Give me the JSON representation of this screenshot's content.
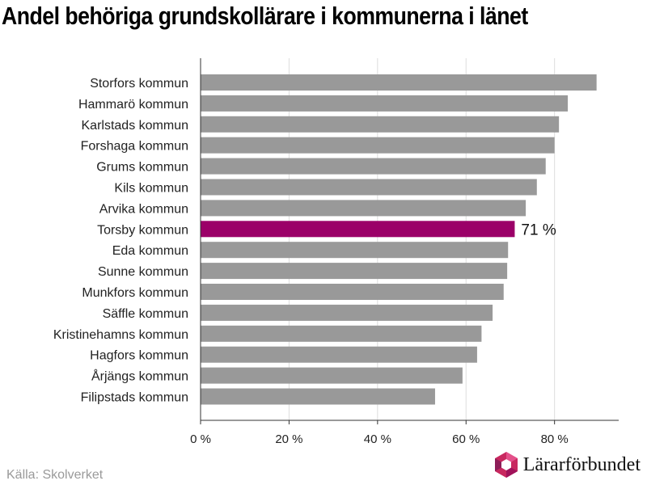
{
  "title": "Andel behöriga grundskollärare i kommunerna i länet",
  "source": "Källa: Skolverket",
  "brand": {
    "name": "Lärarförbundet",
    "logo_icon": "hexagon-logo-icon"
  },
  "colors": {
    "bar": "#999999",
    "highlight": "#9b0068",
    "grid": "#dddddd",
    "axis": "#333333"
  },
  "chart_data": {
    "type": "bar",
    "orientation": "horizontal",
    "title": "Andel behöriga grundskollärare i kommunerna i länet",
    "categories": [
      "Storfors kommun",
      "Hammarö kommun",
      "Karlstads kommun",
      "Forshaga kommun",
      "Grums kommun",
      "Kils kommun",
      "Arvika kommun",
      "Torsby kommun",
      "Eda kommun",
      "Sunne kommun",
      "Munkfors kommun",
      "Säffle kommun",
      "Kristinehamns kommun",
      "Hagfors kommun",
      "Årjängs kommun",
      "Filipstads kommun"
    ],
    "values": [
      89.5,
      83,
      81,
      80,
      78,
      76,
      73.5,
      71,
      69.5,
      69.3,
      68.5,
      66,
      63.5,
      62.5,
      59.2,
      53
    ],
    "highlight_index": 7,
    "data_labels": {
      "7": "71 %"
    },
    "x_ticks": [
      0,
      20,
      40,
      60,
      80
    ],
    "x_tick_labels": [
      "0 %",
      "20 %",
      "40 %",
      "60 %",
      "80 %"
    ],
    "xlim": [
      0,
      94.5
    ],
    "grid": true
  }
}
